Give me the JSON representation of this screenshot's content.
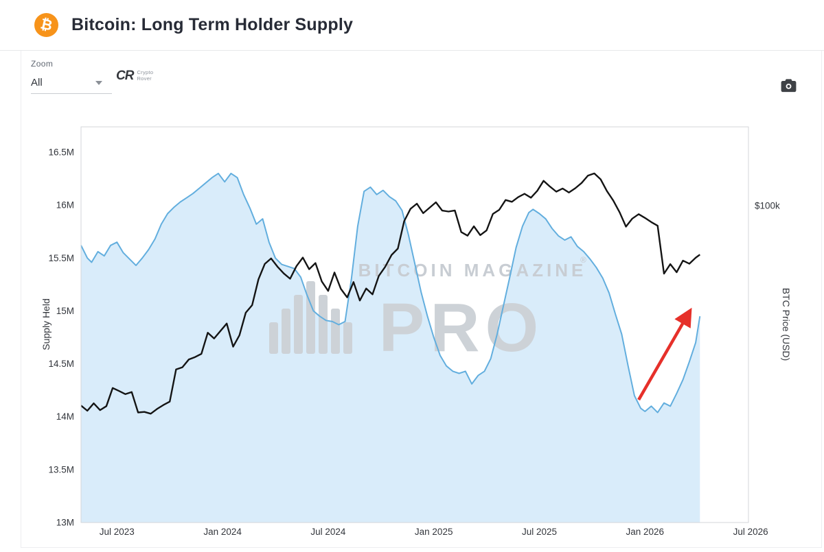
{
  "header": {
    "title": "Bitcoin: Long Term Holder Supply",
    "coin_glyph": "₿"
  },
  "toolbar": {
    "zoom_label": "Zoom",
    "zoom_value": "All",
    "brand": {
      "glyph": "CR",
      "name_top": "Crypto",
      "name_bottom": "Rover"
    }
  },
  "chart_data": {
    "type": "line",
    "title": "Bitcoin: Long Term Holder Supply",
    "watermark": {
      "line1": "BITCOIN MAGAZINE",
      "line2": "PRO",
      "registered": "®"
    },
    "x_axis": {
      "min": 2023.33,
      "max": 2026.49,
      "ticks": [
        {
          "t": 2023.5,
          "label": "Jul 2023"
        },
        {
          "t": 2024.0,
          "label": "Jan 2024"
        },
        {
          "t": 2024.5,
          "label": "Jul 2024"
        },
        {
          "t": 2025.0,
          "label": "Jan 2025"
        },
        {
          "t": 2025.5,
          "label": "Jul 2025"
        },
        {
          "t": 2026.0,
          "label": "Jan 2026"
        },
        {
          "t": 2026.5,
          "label": "Jul 2026"
        }
      ]
    },
    "left_axis": {
      "title": "Supply Held",
      "min": 13,
      "max": 16.74,
      "ticks": [
        {
          "v": 16.5,
          "label": "16.5M"
        },
        {
          "v": 16.0,
          "label": "16M"
        },
        {
          "v": 15.5,
          "label": "15.5M"
        },
        {
          "v": 15.0,
          "label": "15M"
        },
        {
          "v": 14.5,
          "label": "14.5M"
        },
        {
          "v": 14.0,
          "label": "14M"
        },
        {
          "v": 13.5,
          "label": "13.5M"
        },
        {
          "v": 13.0,
          "label": "13M"
        }
      ]
    },
    "right_axis": {
      "title": "BTC Price (USD)",
      "scale": "log",
      "min": 12700,
      "max": 167000,
      "labels": [
        {
          "v": 100000,
          "label": "$100k"
        }
      ]
    },
    "series": [
      {
        "name": "Long Term Holder Supply (M BTC)",
        "axis": "left",
        "type": "area",
        "color": "#62aede",
        "fill": "#d9ecfa",
        "points": [
          [
            2023.33,
            15.62
          ],
          [
            2023.36,
            15.5
          ],
          [
            2023.38,
            15.46
          ],
          [
            2023.41,
            15.56
          ],
          [
            2023.44,
            15.52
          ],
          [
            2023.47,
            15.62
          ],
          [
            2023.5,
            15.65
          ],
          [
            2023.53,
            15.55
          ],
          [
            2023.56,
            15.49
          ],
          [
            2023.59,
            15.43
          ],
          [
            2023.62,
            15.5
          ],
          [
            2023.65,
            15.58
          ],
          [
            2023.68,
            15.68
          ],
          [
            2023.71,
            15.82
          ],
          [
            2023.74,
            15.92
          ],
          [
            2023.77,
            15.98
          ],
          [
            2023.8,
            16.03
          ],
          [
            2023.83,
            16.07
          ],
          [
            2023.86,
            16.11
          ],
          [
            2023.89,
            16.16
          ],
          [
            2023.92,
            16.21
          ],
          [
            2023.95,
            16.26
          ],
          [
            2023.98,
            16.3
          ],
          [
            2024.01,
            16.22
          ],
          [
            2024.04,
            16.3
          ],
          [
            2024.07,
            16.26
          ],
          [
            2024.1,
            16.1
          ],
          [
            2024.13,
            15.97
          ],
          [
            2024.16,
            15.82
          ],
          [
            2024.19,
            15.87
          ],
          [
            2024.22,
            15.65
          ],
          [
            2024.25,
            15.5
          ],
          [
            2024.28,
            15.44
          ],
          [
            2024.31,
            15.42
          ],
          [
            2024.34,
            15.4
          ],
          [
            2024.37,
            15.32
          ],
          [
            2024.4,
            15.15
          ],
          [
            2024.43,
            15.0
          ],
          [
            2024.46,
            14.95
          ],
          [
            2024.49,
            14.91
          ],
          [
            2024.52,
            14.9
          ],
          [
            2024.55,
            14.87
          ],
          [
            2024.58,
            14.9
          ],
          [
            2024.61,
            15.3
          ],
          [
            2024.64,
            15.8
          ],
          [
            2024.67,
            16.13
          ],
          [
            2024.7,
            16.17
          ],
          [
            2024.73,
            16.1
          ],
          [
            2024.76,
            16.14
          ],
          [
            2024.79,
            16.08
          ],
          [
            2024.82,
            16.04
          ],
          [
            2024.85,
            15.95
          ],
          [
            2024.88,
            15.72
          ],
          [
            2024.91,
            15.45
          ],
          [
            2024.94,
            15.18
          ],
          [
            2024.97,
            14.95
          ],
          [
            2025.0,
            14.75
          ],
          [
            2025.03,
            14.58
          ],
          [
            2025.06,
            14.48
          ],
          [
            2025.09,
            14.43
          ],
          [
            2025.12,
            14.41
          ],
          [
            2025.15,
            14.43
          ],
          [
            2025.18,
            14.31
          ],
          [
            2025.21,
            14.39
          ],
          [
            2025.24,
            14.43
          ],
          [
            2025.27,
            14.55
          ],
          [
            2025.3,
            14.78
          ],
          [
            2025.33,
            15.05
          ],
          [
            2025.36,
            15.32
          ],
          [
            2025.39,
            15.6
          ],
          [
            2025.42,
            15.8
          ],
          [
            2025.45,
            15.93
          ],
          [
            2025.47,
            15.96
          ],
          [
            2025.5,
            15.92
          ],
          [
            2025.53,
            15.87
          ],
          [
            2025.56,
            15.78
          ],
          [
            2025.59,
            15.71
          ],
          [
            2025.62,
            15.67
          ],
          [
            2025.65,
            15.7
          ],
          [
            2025.68,
            15.61
          ],
          [
            2025.71,
            15.56
          ],
          [
            2025.74,
            15.49
          ],
          [
            2025.77,
            15.41
          ],
          [
            2025.8,
            15.31
          ],
          [
            2025.83,
            15.17
          ],
          [
            2025.86,
            14.97
          ],
          [
            2025.89,
            14.78
          ],
          [
            2025.92,
            14.48
          ],
          [
            2025.95,
            14.2
          ],
          [
            2025.98,
            14.08
          ],
          [
            2026.0,
            14.05
          ],
          [
            2026.03,
            14.1
          ],
          [
            2026.06,
            14.04
          ],
          [
            2026.09,
            14.13
          ],
          [
            2026.12,
            14.1
          ],
          [
            2026.15,
            14.22
          ],
          [
            2026.18,
            14.35
          ],
          [
            2026.21,
            14.52
          ],
          [
            2026.24,
            14.7
          ],
          [
            2026.26,
            14.95
          ]
        ]
      },
      {
        "name": "BTC Price (USD)",
        "axis": "right",
        "type": "line",
        "color": "#141414",
        "fill": "none",
        "points": [
          [
            2023.33,
            27200
          ],
          [
            2023.36,
            26300
          ],
          [
            2023.39,
            27600
          ],
          [
            2023.42,
            26400
          ],
          [
            2023.45,
            27100
          ],
          [
            2023.48,
            30500
          ],
          [
            2023.51,
            29900
          ],
          [
            2023.54,
            29300
          ],
          [
            2023.57,
            29700
          ],
          [
            2023.6,
            26000
          ],
          [
            2023.63,
            26100
          ],
          [
            2023.66,
            25800
          ],
          [
            2023.69,
            26600
          ],
          [
            2023.72,
            27300
          ],
          [
            2023.75,
            27900
          ],
          [
            2023.78,
            34400
          ],
          [
            2023.81,
            34900
          ],
          [
            2023.84,
            36700
          ],
          [
            2023.87,
            37300
          ],
          [
            2023.9,
            38100
          ],
          [
            2023.93,
            43700
          ],
          [
            2023.96,
            42100
          ],
          [
            2023.99,
            44200
          ],
          [
            2024.02,
            46400
          ],
          [
            2024.05,
            39900
          ],
          [
            2024.08,
            43000
          ],
          [
            2024.11,
            49800
          ],
          [
            2024.14,
            52300
          ],
          [
            2024.17,
            61900
          ],
          [
            2024.2,
            68400
          ],
          [
            2024.23,
            70900
          ],
          [
            2024.26,
            67200
          ],
          [
            2024.29,
            64300
          ],
          [
            2024.32,
            62100
          ],
          [
            2024.35,
            67400
          ],
          [
            2024.38,
            71300
          ],
          [
            2024.41,
            66100
          ],
          [
            2024.44,
            68800
          ],
          [
            2024.47,
            61000
          ],
          [
            2024.5,
            57400
          ],
          [
            2024.53,
            64700
          ],
          [
            2024.56,
            58200
          ],
          [
            2024.59,
            55000
          ],
          [
            2024.62,
            60800
          ],
          [
            2024.65,
            53900
          ],
          [
            2024.68,
            58300
          ],
          [
            2024.71,
            56100
          ],
          [
            2024.74,
            63300
          ],
          [
            2024.77,
            67100
          ],
          [
            2024.8,
            72500
          ],
          [
            2024.83,
            75600
          ],
          [
            2024.86,
            90400
          ],
          [
            2024.89,
            97900
          ],
          [
            2024.92,
            101300
          ],
          [
            2024.95,
            95200
          ],
          [
            2024.98,
            98600
          ],
          [
            2025.01,
            102200
          ],
          [
            2025.04,
            96800
          ],
          [
            2025.07,
            96200
          ],
          [
            2025.1,
            96900
          ],
          [
            2025.13,
            84200
          ],
          [
            2025.16,
            82200
          ],
          [
            2025.19,
            87400
          ],
          [
            2025.22,
            82500
          ],
          [
            2025.25,
            85100
          ],
          [
            2025.28,
            94700
          ],
          [
            2025.31,
            97300
          ],
          [
            2025.34,
            103700
          ],
          [
            2025.37,
            102500
          ],
          [
            2025.4,
            105700
          ],
          [
            2025.43,
            108000
          ],
          [
            2025.46,
            105300
          ],
          [
            2025.49,
            110100
          ],
          [
            2025.52,
            117500
          ],
          [
            2025.55,
            113200
          ],
          [
            2025.58,
            109500
          ],
          [
            2025.61,
            111800
          ],
          [
            2025.64,
            108900
          ],
          [
            2025.67,
            112000
          ],
          [
            2025.7,
            115900
          ],
          [
            2025.73,
            121600
          ],
          [
            2025.76,
            123300
          ],
          [
            2025.79,
            118700
          ],
          [
            2025.82,
            109900
          ],
          [
            2025.85,
            103400
          ],
          [
            2025.88,
            95700
          ],
          [
            2025.91,
            87200
          ],
          [
            2025.94,
            91900
          ],
          [
            2025.97,
            94600
          ],
          [
            2026.0,
            92300
          ],
          [
            2026.03,
            89800
          ],
          [
            2026.06,
            87700
          ],
          [
            2026.09,
            64200
          ],
          [
            2026.12,
            68300
          ],
          [
            2026.15,
            64800
          ],
          [
            2026.18,
            69900
          ],
          [
            2026.21,
            68500
          ],
          [
            2026.24,
            71200
          ],
          [
            2026.26,
            72700
          ]
        ]
      }
    ],
    "annotations": [
      {
        "type": "arrow",
        "color": "#e6302a",
        "axis": "left",
        "from": [
          2025.97,
          14.16
        ],
        "to": [
          2026.21,
          14.99
        ]
      }
    ],
    "legend": "none",
    "grid": "off"
  }
}
